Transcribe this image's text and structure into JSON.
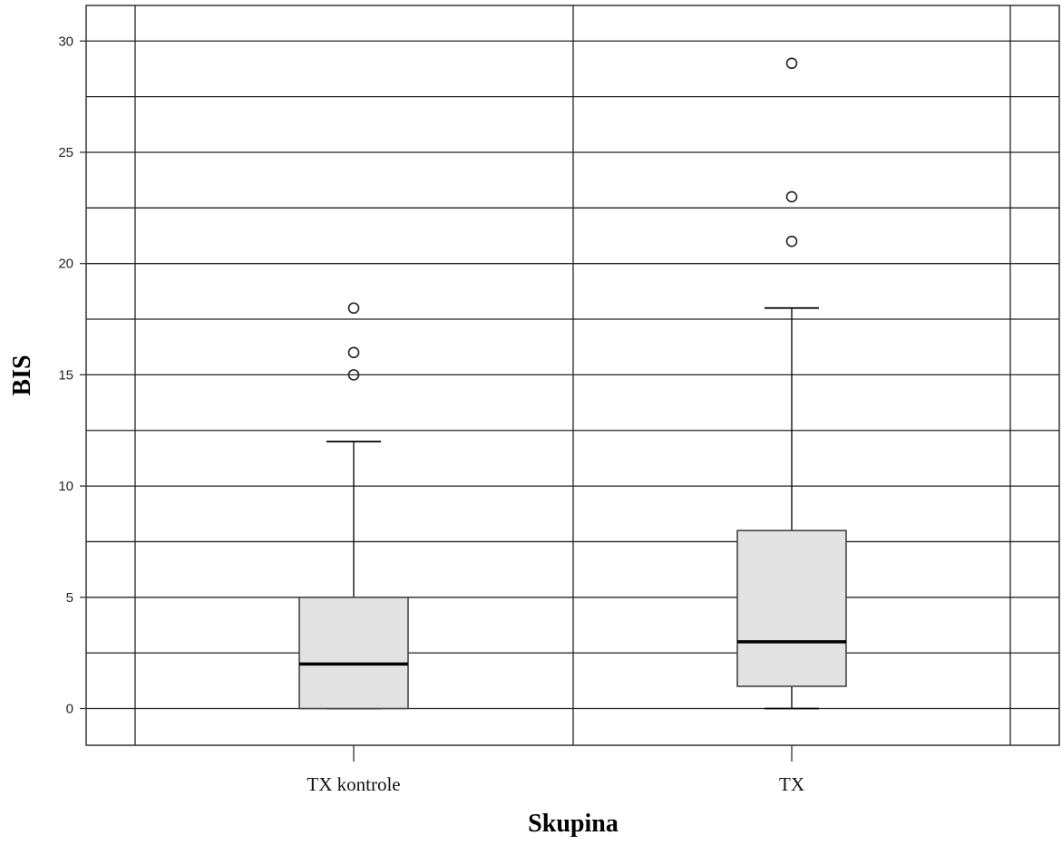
{
  "chart_data": {
    "type": "boxplot",
    "xlabel": "Skupina",
    "ylabel": "BIS",
    "ylim": [
      -1.65,
      31.6
    ],
    "yticks": [
      0,
      5,
      10,
      15,
      20,
      25,
      30
    ],
    "ygrid_step": 2.5,
    "grid": true,
    "categories": [
      "TX kontrole",
      "TX"
    ],
    "boxes": [
      {
        "category": "TX kontrole",
        "whisker_low": 0,
        "q1": 0,
        "median": 2,
        "q3": 5,
        "whisker_high": 12,
        "outliers": [
          15,
          16,
          18
        ]
      },
      {
        "category": "TX",
        "whisker_low": 0,
        "q1": 1,
        "median": 3,
        "q3": 8,
        "whisker_high": 18,
        "outliers": [
          21,
          23,
          29
        ]
      }
    ],
    "colors": {
      "box_fill": "#e2e2e2",
      "box_stroke": "#444444",
      "median": "#000000",
      "grid": "#222222",
      "axis": "#333333"
    }
  }
}
